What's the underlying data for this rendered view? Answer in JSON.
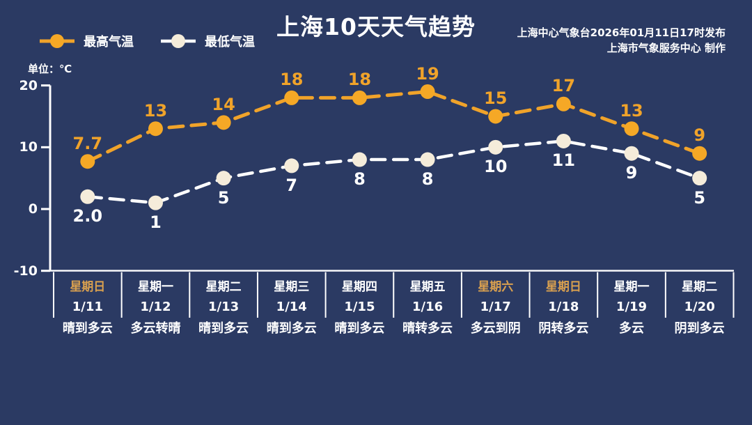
{
  "header": {
    "title": "上海10天天气趋势",
    "source_line1": "上海中心气象台2026年01月11日17时发布",
    "source_line2": "上海市气象服务中心  制作",
    "unit_label": "单位：℃"
  },
  "colors": {
    "background": "#2b3a63",
    "axis": "#ffffff",
    "high_accent": "#f0a32a",
    "low_line": "#ffffff",
    "low_marker": "#f5ecda",
    "weekend_label": "#d9a04f",
    "text": "#ffffff"
  },
  "legend": [
    {
      "label": "最高气温",
      "line_color": "#f0a32a",
      "marker_fill": "#f5a826"
    },
    {
      "label": "最低气温",
      "line_color": "#ffffff",
      "marker_fill": "#f5ecda"
    }
  ],
  "chart_data": {
    "type": "line",
    "title": "上海10天天气趋势",
    "unit": "℃",
    "ylim": [
      -10,
      20
    ],
    "yticks": [
      20,
      10,
      0,
      -10
    ],
    "grid": false,
    "legend_position": "top-left",
    "categories": [
      "1/11",
      "1/12",
      "1/13",
      "1/14",
      "1/15",
      "1/16",
      "1/17",
      "1/18",
      "1/19",
      "1/20"
    ],
    "series": [
      {
        "name": "最高气温",
        "values": [
          7.7,
          13,
          14,
          18,
          18,
          19,
          15,
          17,
          13,
          9
        ],
        "labels": [
          "7.7",
          "13",
          "14",
          "18",
          "18",
          "19",
          "15",
          "17",
          "13",
          "9"
        ],
        "color": "#f0a32a",
        "marker_fill": "#f5a826",
        "label_color": "#f0a32a"
      },
      {
        "name": "最低气温",
        "values": [
          2.0,
          1,
          5,
          7,
          8,
          8,
          10,
          11,
          9,
          5
        ],
        "labels": [
          "2.0",
          "1",
          "5",
          "7",
          "8",
          "8",
          "10",
          "11",
          "9",
          "5"
        ],
        "color": "#ffffff",
        "marker_fill": "#f5ecda",
        "label_color": "#ffffff"
      }
    ],
    "days": [
      {
        "weekday": "星期日",
        "date": "1/11",
        "weather": "晴到多云",
        "weekend": true
      },
      {
        "weekday": "星期一",
        "date": "1/12",
        "weather": "多云转晴",
        "weekend": false
      },
      {
        "weekday": "星期二",
        "date": "1/13",
        "weather": "晴到多云",
        "weekend": false
      },
      {
        "weekday": "星期三",
        "date": "1/14",
        "weather": "晴到多云",
        "weekend": false
      },
      {
        "weekday": "星期四",
        "date": "1/15",
        "weather": "晴到多云",
        "weekend": false
      },
      {
        "weekday": "星期五",
        "date": "1/16",
        "weather": "晴转多云",
        "weekend": false
      },
      {
        "weekday": "星期六",
        "date": "1/17",
        "weather": "多云到阴",
        "weekend": true
      },
      {
        "weekday": "星期日",
        "date": "1/18",
        "weather": "阴转多云",
        "weekend": true
      },
      {
        "weekday": "星期一",
        "date": "1/19",
        "weather": "多云",
        "weekend": false
      },
      {
        "weekday": "星期二",
        "date": "1/20",
        "weather": "阴到多云",
        "weekend": false
      }
    ]
  }
}
